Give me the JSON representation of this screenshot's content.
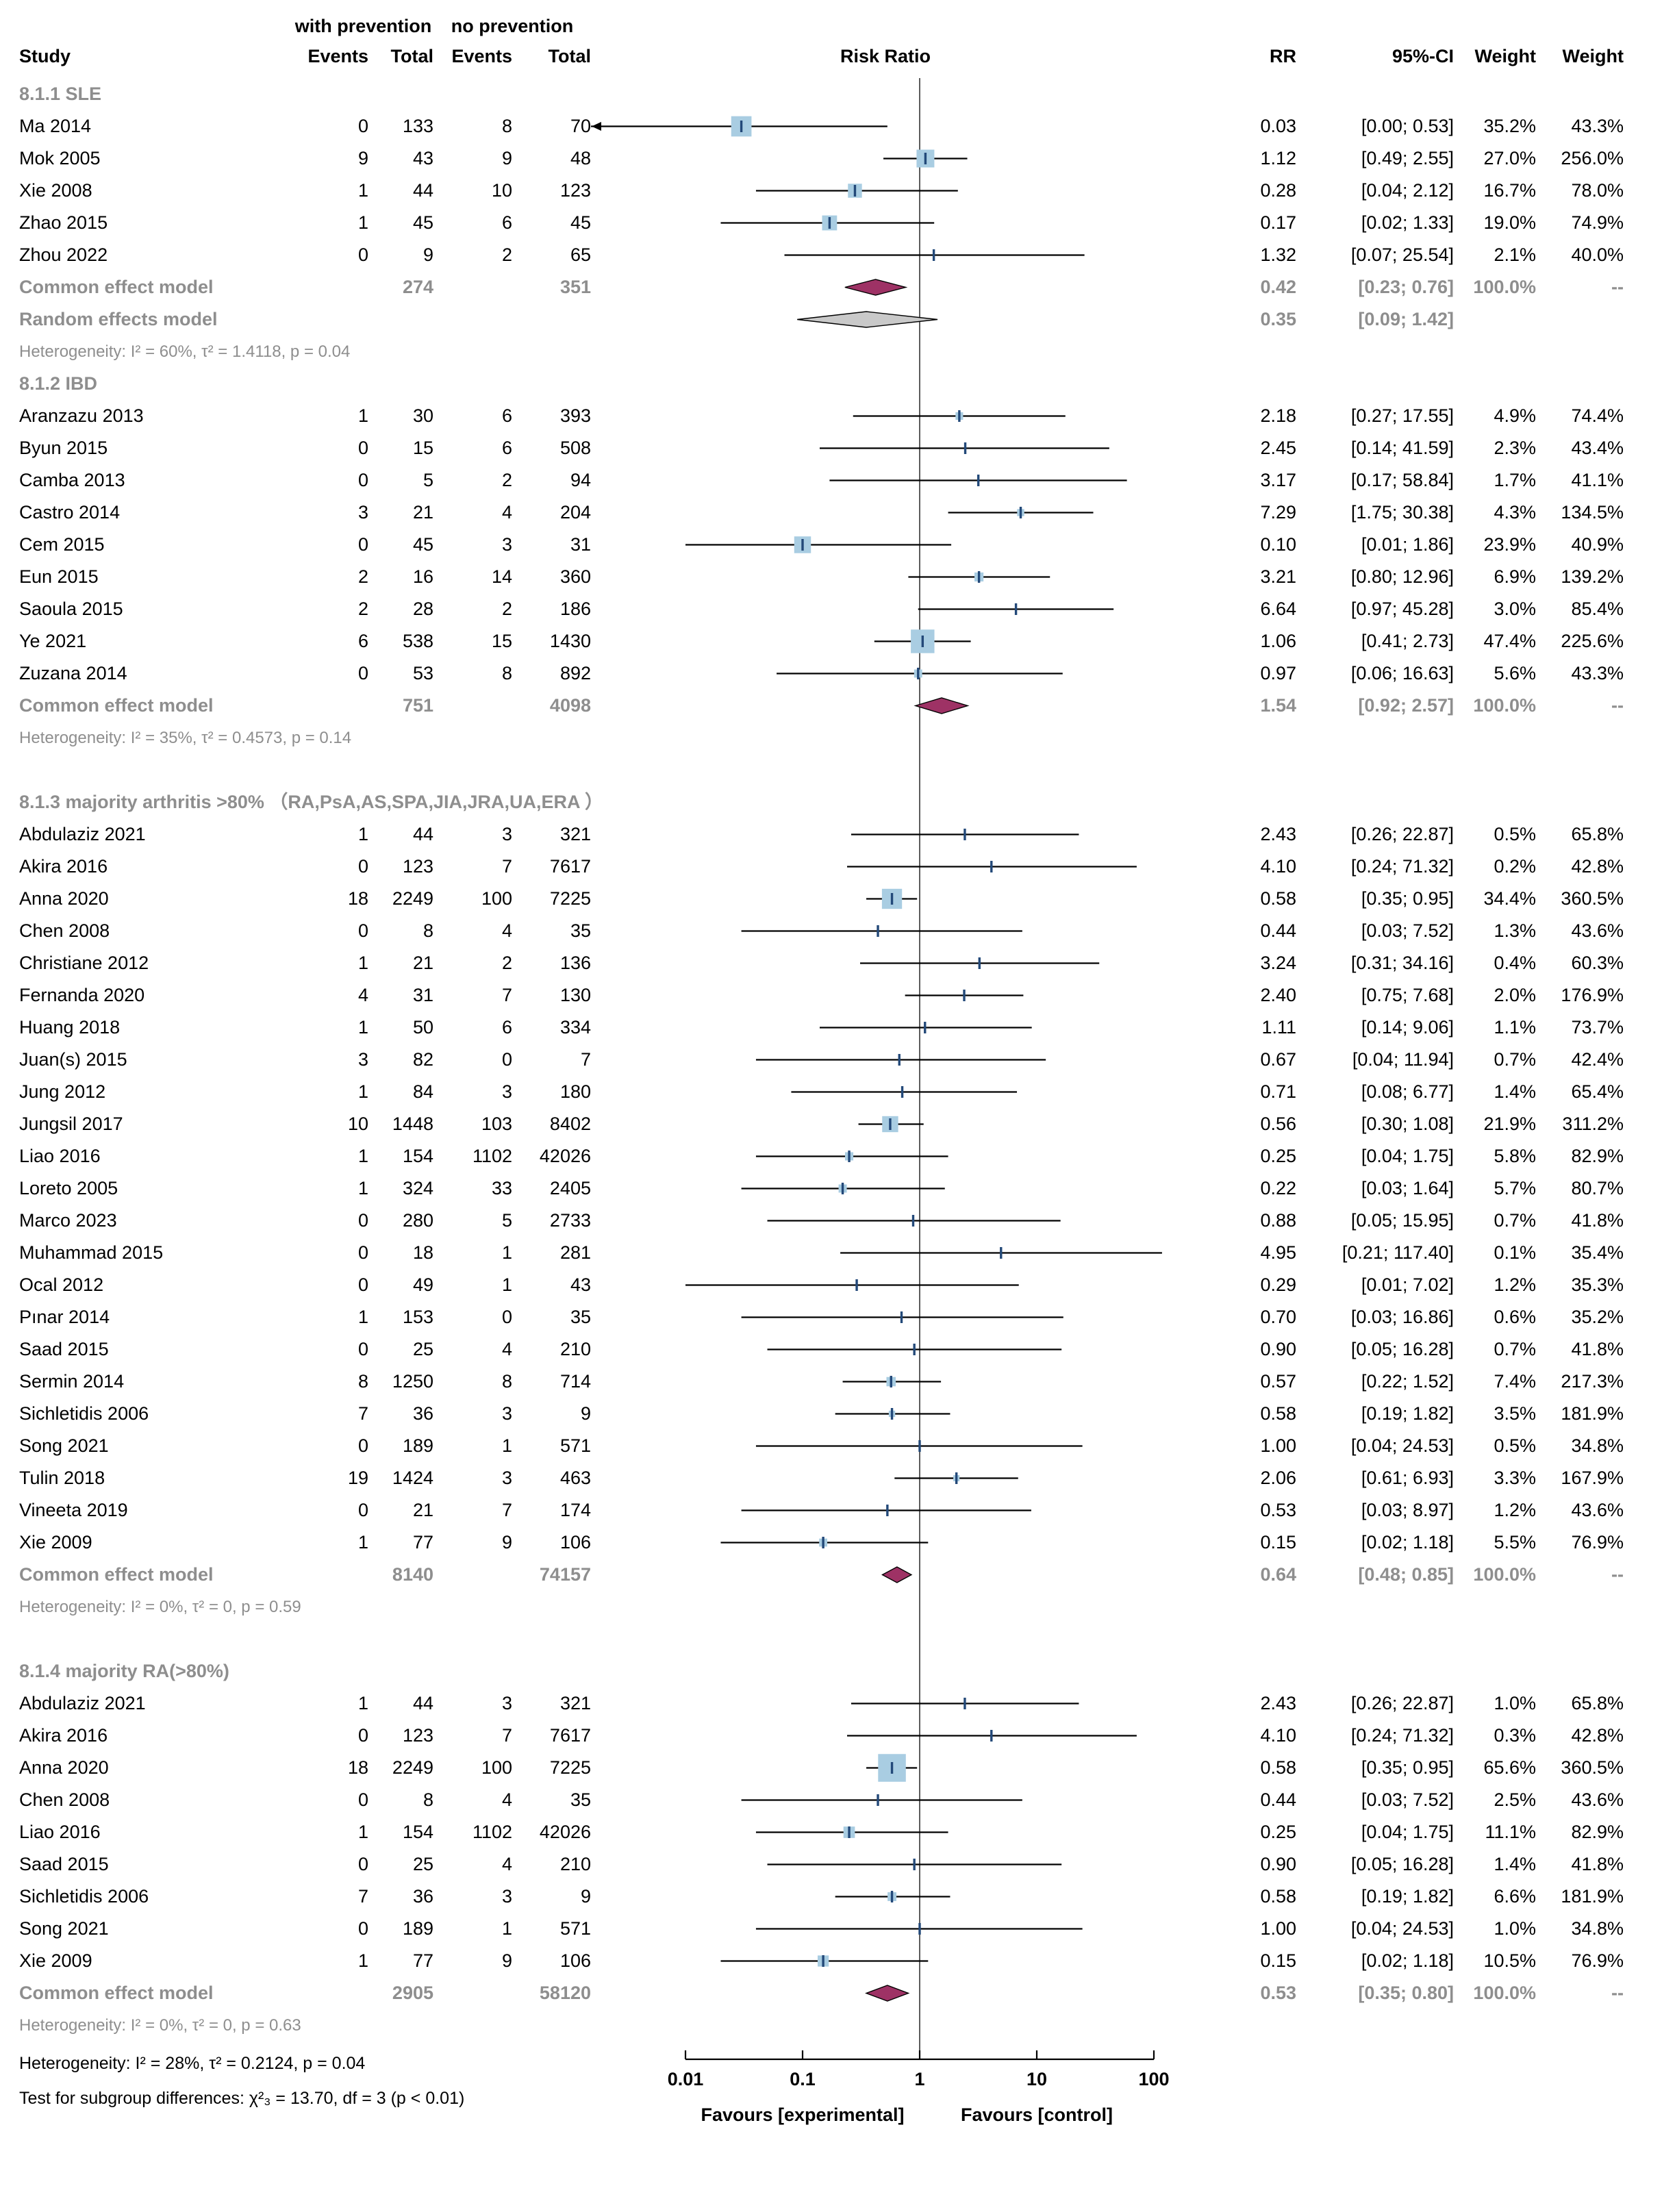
{
  "chart_data": {
    "type": "forest",
    "header": {
      "group1": "with prevention",
      "group2": "no prevention",
      "study": "Study",
      "events1": "Events",
      "total1": "Total",
      "events2": "Events",
      "total2": "Total",
      "plot": "Risk Ratio",
      "rr": "RR",
      "ci": "95%-CI",
      "weight1": "Weight",
      "weight2": "Weight"
    },
    "colors": {
      "ref_line": "#333333",
      "ci_line": "#000000",
      "square": "#a9cde2",
      "marker": "#234979",
      "diamond_common": "#9e3265",
      "diamond_random": "#c9c9c9"
    },
    "x_axis": {
      "scale": "log",
      "ticks": [
        0.01,
        0.1,
        1,
        10,
        100
      ],
      "tick_labels": [
        "0.01",
        "0.1",
        "1",
        "10",
        "100"
      ],
      "ref_line": 1,
      "left_label": "Favours [experimental]",
      "right_label": "Favours [control]"
    },
    "sections": [
      {
        "label": "8.1.1 SLE",
        "studies": [
          [
            "Ma 2014",
            "0",
            "133",
            "8",
            "70",
            0.03,
            0,
            0.53,
            "0.03",
            "[0.00; 0.53]",
            "35.2%",
            "43.3%"
          ],
          [
            "Mok 2005",
            "9",
            "43",
            "9",
            "48",
            1.12,
            0.49,
            2.55,
            "1.12",
            "[0.49; 2.55]",
            "27.0%",
            "256.0%"
          ],
          [
            "Xie 2008",
            "1",
            "44",
            "10",
            "123",
            0.28,
            0.04,
            2.12,
            "0.28",
            "[0.04; 2.12]",
            "16.7%",
            "78.0%"
          ],
          [
            "Zhao 2015",
            "1",
            "45",
            "6",
            "45",
            0.17,
            0.02,
            1.33,
            "0.17",
            "[0.02; 1.33]",
            "19.0%",
            "74.9%"
          ],
          [
            "Zhou 2022",
            "0",
            "9",
            "2",
            "65",
            1.32,
            0.07,
            25.54,
            "1.32",
            "[0.07; 25.54]",
            "2.1%",
            "40.0%"
          ]
        ],
        "summaries": [
          {
            "label": "Common effect model",
            "n1": "274",
            "n2": "351",
            "rr": 0.42,
            "lo": 0.23,
            "hi": 0.76,
            "rr_text": "0.42",
            "ci_text": "[0.23; 0.76]",
            "w1": "100.0%",
            "w2": "--",
            "kind": "common"
          },
          {
            "label": "Random effects model",
            "rr": 0.35,
            "lo": 0.09,
            "hi": 1.42,
            "rr_text": "0.35",
            "ci_text": "[0.09; 1.42]",
            "w1": "",
            "w2": "",
            "kind": "random"
          }
        ],
        "heterogeneity": "Heterogeneity: I² = 60%, τ² = 1.4118, p = 0.04",
        "spacer_after": false
      },
      {
        "label": "8.1.2 IBD",
        "studies": [
          [
            "Aranzazu 2013",
            "1",
            "30",
            "6",
            "393",
            2.18,
            0.27,
            17.55,
            "2.18",
            "[0.27; 17.55]",
            "4.9%",
            "74.4%"
          ],
          [
            "Byun 2015",
            "0",
            "15",
            "6",
            "508",
            2.45,
            0.14,
            41.59,
            "2.45",
            "[0.14; 41.59]",
            "2.3%",
            "43.4%"
          ],
          [
            "Camba 2013",
            "0",
            "5",
            "2",
            "94",
            3.17,
            0.17,
            58.84,
            "3.17",
            "[0.17; 58.84]",
            "1.7%",
            "41.1%"
          ],
          [
            "Castro 2014",
            "3",
            "21",
            "4",
            "204",
            7.29,
            1.75,
            30.38,
            "7.29",
            "[1.75; 30.38]",
            "4.3%",
            "134.5%"
          ],
          [
            "Cem 2015",
            "0",
            "45",
            "3",
            "31",
            0.1,
            0.01,
            1.86,
            "0.10",
            "[0.01; 1.86]",
            "23.9%",
            "40.9%"
          ],
          [
            "Eun 2015",
            "2",
            "16",
            "14",
            "360",
            3.21,
            0.8,
            12.96,
            "3.21",
            "[0.80; 12.96]",
            "6.9%",
            "139.2%"
          ],
          [
            "Saoula 2015",
            "2",
            "28",
            "2",
            "186",
            6.64,
            0.97,
            45.28,
            "6.64",
            "[0.97; 45.28]",
            "3.0%",
            "85.4%"
          ],
          [
            "Ye 2021",
            "6",
            "538",
            "15",
            "1430",
            1.06,
            0.41,
            2.73,
            "1.06",
            "[0.41; 2.73]",
            "47.4%",
            "225.6%"
          ],
          [
            "Zuzana 2014",
            "0",
            "53",
            "8",
            "892",
            0.97,
            0.06,
            16.63,
            "0.97",
            "[0.06; 16.63]",
            "5.6%",
            "43.3%"
          ]
        ],
        "summaries": [
          {
            "label": "Common effect model",
            "n1": "751",
            "n2": "4098",
            "rr": 1.54,
            "lo": 0.92,
            "hi": 2.57,
            "rr_text": "1.54",
            "ci_text": "[0.92; 2.57]",
            "w1": "100.0%",
            "w2": "--",
            "kind": "common"
          }
        ],
        "heterogeneity": "Heterogeneity: I² = 35%, τ² = 0.4573, p = 0.14",
        "spacer_after": true
      },
      {
        "label": "8.1.3 majority arthritis >80% （RA,PsA,AS,SPA,JIA,JRA,UA,ERA ）",
        "studies": [
          [
            "Abdulaziz 2021",
            "1",
            "44",
            "3",
            "321",
            2.43,
            0.26,
            22.87,
            "2.43",
            "[0.26; 22.87]",
            "0.5%",
            "65.8%"
          ],
          [
            "Akira 2016",
            "0",
            "123",
            "7",
            "7617",
            4.1,
            0.24,
            71.32,
            "4.10",
            "[0.24; 71.32]",
            "0.2%",
            "42.8%"
          ],
          [
            "Anna 2020",
            "18",
            "2249",
            "100",
            "7225",
            0.58,
            0.35,
            0.95,
            "0.58",
            "[0.35; 0.95]",
            "34.4%",
            "360.5%"
          ],
          [
            "Chen 2008",
            "0",
            "8",
            "4",
            "35",
            0.44,
            0.03,
            7.52,
            "0.44",
            "[0.03; 7.52]",
            "1.3%",
            "43.6%"
          ],
          [
            "Christiane 2012",
            "1",
            "21",
            "2",
            "136",
            3.24,
            0.31,
            34.16,
            "3.24",
            "[0.31; 34.16]",
            "0.4%",
            "60.3%"
          ],
          [
            "Fernanda 2020",
            "4",
            "31",
            "7",
            "130",
            2.4,
            0.75,
            7.68,
            "2.40",
            "[0.75; 7.68]",
            "2.0%",
            "176.9%"
          ],
          [
            "Huang 2018",
            "1",
            "50",
            "6",
            "334",
            1.11,
            0.14,
            9.06,
            "1.11",
            "[0.14; 9.06]",
            "1.1%",
            "73.7%"
          ],
          [
            "Juan(s) 2015",
            "3",
            "82",
            "0",
            "7",
            0.67,
            0.04,
            11.94,
            "0.67",
            "[0.04; 11.94]",
            "0.7%",
            "42.4%"
          ],
          [
            "Jung 2012",
            "1",
            "84",
            "3",
            "180",
            0.71,
            0.08,
            6.77,
            "0.71",
            "[0.08; 6.77]",
            "1.4%",
            "65.4%"
          ],
          [
            "Jungsil 2017",
            "10",
            "1448",
            "103",
            "8402",
            0.56,
            0.3,
            1.08,
            "0.56",
            "[0.30; 1.08]",
            "21.9%",
            "311.2%"
          ],
          [
            "Liao 2016",
            "1",
            "154",
            "1102",
            "42026",
            0.25,
            0.04,
            1.75,
            "0.25",
            "[0.04; 1.75]",
            "5.8%",
            "82.9%"
          ],
          [
            "Loreto 2005",
            "1",
            "324",
            "33",
            "2405",
            0.22,
            0.03,
            1.64,
            "0.22",
            "[0.03; 1.64]",
            "5.7%",
            "80.7%"
          ],
          [
            "Marco 2023",
            "0",
            "280",
            "5",
            "2733",
            0.88,
            0.05,
            15.95,
            "0.88",
            "[0.05; 15.95]",
            "0.7%",
            "41.8%"
          ],
          [
            "Muhammad 2015",
            "0",
            "18",
            "1",
            "281",
            4.95,
            0.21,
            117.4,
            "4.95",
            "[0.21; 117.40]",
            "0.1%",
            "35.4%"
          ],
          [
            "Ocal 2012",
            "0",
            "49",
            "1",
            "43",
            0.29,
            0.01,
            7.02,
            "0.29",
            "[0.01; 7.02]",
            "1.2%",
            "35.3%"
          ],
          [
            "Pınar 2014",
            "1",
            "153",
            "0",
            "35",
            0.7,
            0.03,
            16.86,
            "0.70",
            "[0.03; 16.86]",
            "0.6%",
            "35.2%"
          ],
          [
            "Saad 2015",
            "0",
            "25",
            "4",
            "210",
            0.9,
            0.05,
            16.28,
            "0.90",
            "[0.05; 16.28]",
            "0.7%",
            "41.8%"
          ],
          [
            "Sermin 2014",
            "8",
            "1250",
            "8",
            "714",
            0.57,
            0.22,
            1.52,
            "0.57",
            "[0.22; 1.52]",
            "7.4%",
            "217.3%"
          ],
          [
            "Sichletidis 2006",
            "7",
            "36",
            "3",
            "9",
            0.58,
            0.19,
            1.82,
            "0.58",
            "[0.19; 1.82]",
            "3.5%",
            "181.9%"
          ],
          [
            "Song 2021",
            "0",
            "189",
            "1",
            "571",
            1.0,
            0.04,
            24.53,
            "1.00",
            "[0.04; 24.53]",
            "0.5%",
            "34.8%"
          ],
          [
            "Tulin 2018",
            "19",
            "1424",
            "3",
            "463",
            2.06,
            0.61,
            6.93,
            "2.06",
            "[0.61; 6.93]",
            "3.3%",
            "167.9%"
          ],
          [
            "Vineeta 2019",
            "0",
            "21",
            "7",
            "174",
            0.53,
            0.03,
            8.97,
            "0.53",
            "[0.03; 8.97]",
            "1.2%",
            "43.6%"
          ],
          [
            "Xie 2009",
            "1",
            "77",
            "9",
            "106",
            0.15,
            0.02,
            1.18,
            "0.15",
            "[0.02; 1.18]",
            "5.5%",
            "76.9%"
          ]
        ],
        "summaries": [
          {
            "label": "Common effect model",
            "n1": "8140",
            "n2": "74157",
            "rr": 0.64,
            "lo": 0.48,
            "hi": 0.85,
            "rr_text": "0.64",
            "ci_text": "[0.48; 0.85]",
            "w1": "100.0%",
            "w2": "--",
            "kind": "common"
          }
        ],
        "heterogeneity": "Heterogeneity: I² = 0%, τ² = 0, p = 0.59",
        "spacer_after": true
      },
      {
        "label": "8.1.4 majority RA(>80%)",
        "studies": [
          [
            "Abdulaziz 2021",
            "1",
            "44",
            "3",
            "321",
            2.43,
            0.26,
            22.87,
            "2.43",
            "[0.26; 22.87]",
            "1.0%",
            "65.8%"
          ],
          [
            "Akira 2016",
            "0",
            "123",
            "7",
            "7617",
            4.1,
            0.24,
            71.32,
            "4.10",
            "[0.24; 71.32]",
            "0.3%",
            "42.8%"
          ],
          [
            "Anna 2020",
            "18",
            "2249",
            "100",
            "7225",
            0.58,
            0.35,
            0.95,
            "0.58",
            "[0.35; 0.95]",
            "65.6%",
            "360.5%"
          ],
          [
            "Chen 2008",
            "0",
            "8",
            "4",
            "35",
            0.44,
            0.03,
            7.52,
            "0.44",
            "[0.03; 7.52]",
            "2.5%",
            "43.6%"
          ],
          [
            "Liao 2016",
            "1",
            "154",
            "1102",
            "42026",
            0.25,
            0.04,
            1.75,
            "0.25",
            "[0.04; 1.75]",
            "11.1%",
            "82.9%"
          ],
          [
            "Saad 2015",
            "0",
            "25",
            "4",
            "210",
            0.9,
            0.05,
            16.28,
            "0.90",
            "[0.05; 16.28]",
            "1.4%",
            "41.8%"
          ],
          [
            "Sichletidis 2006",
            "7",
            "36",
            "3",
            "9",
            0.58,
            0.19,
            1.82,
            "0.58",
            "[0.19; 1.82]",
            "6.6%",
            "181.9%"
          ],
          [
            "Song 2021",
            "0",
            "189",
            "1",
            "571",
            1.0,
            0.04,
            24.53,
            "1.00",
            "[0.04; 24.53]",
            "1.0%",
            "34.8%"
          ],
          [
            "Xie 2009",
            "1",
            "77",
            "9",
            "106",
            0.15,
            0.02,
            1.18,
            "0.15",
            "[0.02; 1.18]",
            "10.5%",
            "76.9%"
          ]
        ],
        "summaries": [
          {
            "label": "Common effect model",
            "n1": "2905",
            "n2": "58120",
            "rr": 0.53,
            "lo": 0.35,
            "hi": 0.8,
            "rr_text": "0.53",
            "ci_text": "[0.35; 0.80]",
            "w1": "100.0%",
            "w2": "--",
            "kind": "common"
          }
        ],
        "heterogeneity": "Heterogeneity: I² = 0%, τ² = 0, p = 0.63",
        "spacer_after": false
      }
    ],
    "footer": {
      "heterogeneity": "Heterogeneity: I² = 28%, τ² = 0.2124, p = 0.04",
      "subgroup_test": "Test for subgroup differences: χ²₃ = 13.70, df = 3 (p < 0.01)"
    }
  }
}
